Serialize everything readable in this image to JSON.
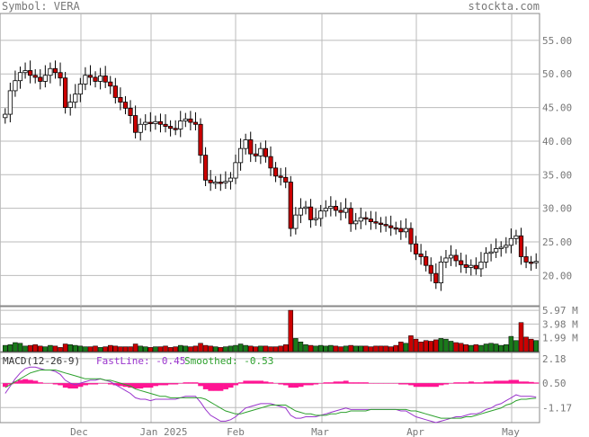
{
  "header": {
    "symbol": "Symbol: VERA",
    "site": "stockta.com"
  },
  "colors": {
    "up": "#1a7a1a",
    "down": "#cc0000",
    "grid": "#bbbbbb",
    "hist": "#ff1493",
    "fast": "#9933cc",
    "smooth": "#2ca02c"
  },
  "macd_panel": {
    "label": "MACD(12-26-9)",
    "fast_label": "FastLine: -0.45",
    "smooth_label": "Smoothed: -0.53"
  },
  "chart_data": [
    {
      "type": "candlestick",
      "y_ticks": [
        "55.00",
        "50.00",
        "45.00",
        "40.00",
        "35.00",
        "30.00",
        "25.00",
        "20.00"
      ],
      "ylim": [
        15.5,
        59
      ],
      "x_labels": [
        "Dec",
        "Jan 2025",
        "Feb",
        "Mar",
        "Apr",
        "May"
      ],
      "grid": true,
      "close": [
        44.0,
        47.5,
        49.0,
        50.2,
        50.5,
        49.8,
        49.5,
        48.9,
        49.8,
        50.8,
        50.2,
        49.4,
        45.0,
        45.8,
        47.0,
        48.5,
        49.8,
        49.5,
        48.9,
        49.7,
        48.8,
        48.2,
        46.5,
        45.8,
        44.9,
        43.8,
        41.3,
        42.5,
        42.8,
        42.6,
        42.9,
        42.5,
        42.2,
        41.9,
        41.8,
        43.0,
        43.3,
        42.8,
        42.5,
        37.9,
        34.2,
        33.8,
        33.9,
        33.8,
        34.0,
        34.5,
        36.8,
        38.9,
        40.2,
        38.1,
        37.8,
        38.9,
        37.7,
        36.0,
        34.8,
        34.6,
        33.9,
        27.0,
        29.0,
        30.0,
        30.2,
        28.3,
        28.5,
        29.6,
        30.0,
        30.3,
        29.7,
        29.4,
        30.0,
        27.7,
        28.1,
        28.6,
        28.4,
        28.0,
        27.8,
        27.6,
        27.4,
        27.1,
        27.0,
        26.5,
        27.0,
        24.7,
        23.2,
        22.8,
        21.5,
        20.3,
        18.9,
        22.0,
        22.6,
        23.0,
        22.2,
        21.6,
        21.2,
        21.5,
        21.0,
        22.0,
        23.3,
        23.5,
        24.0,
        24.2,
        24.5,
        25.5,
        25.9,
        22.8,
        22.0,
        21.9,
        22.1
      ],
      "volume_ticks": [
        "5.97 M",
        "3.98 M",
        "1.99 M"
      ],
      "volume_max": 6.5,
      "volume": [
        0.9,
        1.0,
        1.3,
        1.2,
        0.8,
        0.9,
        1.0,
        0.8,
        0.7,
        0.9,
        0.8,
        0.6,
        1.1,
        1.0,
        0.9,
        0.8,
        0.7,
        0.7,
        0.8,
        0.6,
        0.7,
        0.9,
        0.8,
        0.7,
        0.7,
        0.7,
        1.1,
        0.8,
        0.7,
        0.6,
        0.7,
        0.7,
        0.8,
        0.6,
        0.7,
        0.9,
        0.8,
        0.7,
        0.8,
        1.2,
        0.9,
        0.8,
        0.7,
        0.6,
        0.7,
        0.8,
        0.9,
        1.1,
        0.9,
        0.8,
        0.7,
        0.8,
        0.8,
        0.7,
        0.7,
        0.8,
        1.0,
        5.97,
        1.9,
        1.4,
        1.0,
        0.9,
        0.8,
        0.9,
        0.8,
        0.9,
        0.8,
        0.7,
        0.8,
        0.9,
        0.8,
        0.8,
        0.8,
        0.7,
        0.8,
        0.8,
        0.8,
        0.7,
        0.9,
        1.4,
        1.2,
        2.3,
        1.8,
        1.4,
        1.6,
        1.5,
        1.7,
        1.9,
        1.8,
        1.5,
        1.3,
        1.2,
        1.0,
        0.9,
        1.0,
        0.9,
        1.1,
        1.2,
        1.1,
        0.9,
        1.0,
        2.2,
        1.6,
        4.2,
        2.1,
        1.8,
        1.6
      ],
      "macd_ticks": [
        "2.18",
        "0.50",
        "-1.17"
      ],
      "macd_ylim": [
        -2.2,
        2.6
      ],
      "macd_fast": [
        -0.2,
        0.3,
        0.8,
        1.2,
        1.5,
        1.6,
        1.6,
        1.5,
        1.4,
        1.4,
        1.3,
        1.1,
        0.7,
        0.5,
        0.4,
        0.5,
        0.6,
        0.7,
        0.7,
        0.8,
        0.7,
        0.6,
        0.4,
        0.2,
        0.0,
        -0.2,
        -0.5,
        -0.6,
        -0.6,
        -0.7,
        -0.6,
        -0.6,
        -0.6,
        -0.6,
        -0.6,
        -0.5,
        -0.4,
        -0.4,
        -0.4,
        -0.8,
        -1.3,
        -1.7,
        -1.9,
        -2.1,
        -2.1,
        -2.0,
        -1.8,
        -1.5,
        -1.2,
        -1.1,
        -1.0,
        -0.9,
        -0.9,
        -0.9,
        -1.0,
        -1.1,
        -1.2,
        -1.7,
        -1.9,
        -1.9,
        -1.8,
        -1.8,
        -1.8,
        -1.7,
        -1.6,
        -1.5,
        -1.4,
        -1.3,
        -1.2,
        -1.3,
        -1.3,
        -1.3,
        -1.3,
        -1.3,
        -1.3,
        -1.3,
        -1.3,
        -1.3,
        -1.3,
        -1.4,
        -1.4,
        -1.6,
        -1.8,
        -1.9,
        -2.0,
        -2.1,
        -2.2,
        -2.1,
        -2.0,
        -1.9,
        -1.8,
        -1.8,
        -1.7,
        -1.6,
        -1.6,
        -1.5,
        -1.3,
        -1.2,
        -1.0,
        -0.9,
        -0.7,
        -0.5,
        -0.3,
        -0.4,
        -0.4,
        -0.4,
        -0.45
      ],
      "macd_smooth": [
        0.2,
        0.4,
        0.6,
        0.8,
        1.0,
        1.2,
        1.3,
        1.4,
        1.4,
        1.4,
        1.4,
        1.3,
        1.2,
        1.1,
        1.0,
        0.9,
        0.8,
        0.8,
        0.8,
        0.8,
        0.7,
        0.7,
        0.6,
        0.5,
        0.4,
        0.3,
        0.1,
        0.0,
        -0.1,
        -0.2,
        -0.3,
        -0.4,
        -0.4,
        -0.5,
        -0.5,
        -0.5,
        -0.5,
        -0.5,
        -0.5,
        -0.5,
        -0.6,
        -0.8,
        -1.0,
        -1.2,
        -1.4,
        -1.5,
        -1.6,
        -1.6,
        -1.5,
        -1.4,
        -1.3,
        -1.2,
        -1.1,
        -1.0,
        -1.0,
        -1.0,
        -1.0,
        -1.2,
        -1.4,
        -1.5,
        -1.6,
        -1.6,
        -1.7,
        -1.7,
        -1.7,
        -1.6,
        -1.6,
        -1.5,
        -1.5,
        -1.4,
        -1.4,
        -1.4,
        -1.4,
        -1.3,
        -1.3,
        -1.3,
        -1.3,
        -1.3,
        -1.3,
        -1.3,
        -1.3,
        -1.4,
        -1.4,
        -1.5,
        -1.6,
        -1.7,
        -1.8,
        -1.9,
        -1.9,
        -1.9,
        -1.9,
        -1.9,
        -1.8,
        -1.8,
        -1.7,
        -1.6,
        -1.5,
        -1.4,
        -1.3,
        -1.2,
        -1.0,
        -0.9,
        -0.7,
        -0.6,
        -0.6,
        -0.55,
        -0.53
      ]
    }
  ]
}
